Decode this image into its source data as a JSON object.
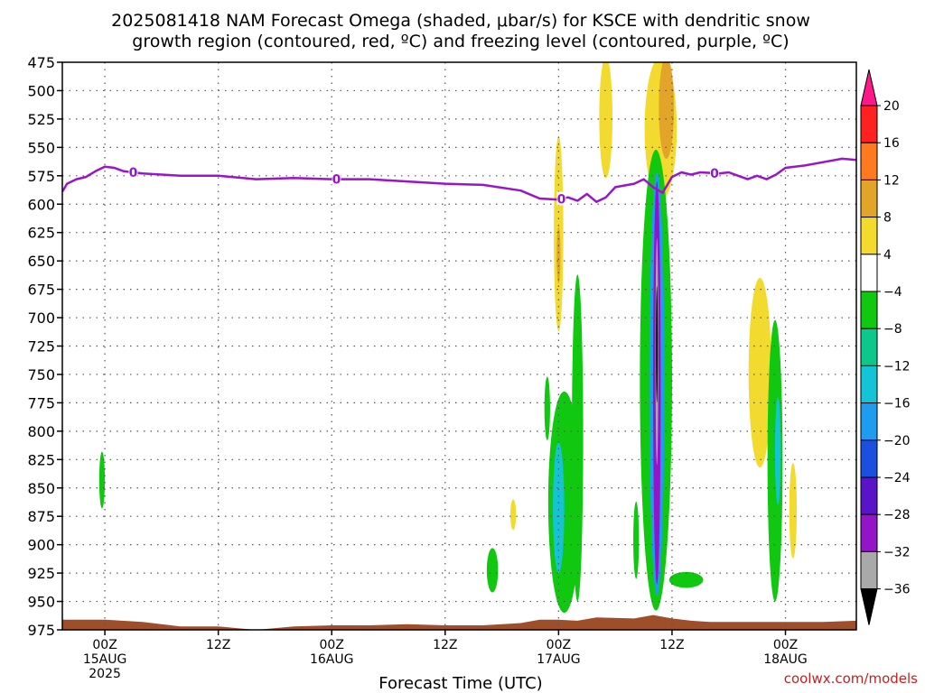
{
  "chart_data": {
    "type": "heatmap",
    "title_lines": [
      "2025081418 NAM Forecast Omega (shaded, μbar/s) for KSCE with dendritic snow",
      "growth region (contoured, red, ºC) and freezing level (contoured, purple, ºC)"
    ],
    "xlabel": "Forecast Time (UTC)",
    "watermark": "coolwx.com/models",
    "y_axis": {
      "unit": "hPa",
      "reversed": true,
      "range": [
        475,
        975
      ],
      "ticks": [
        475,
        500,
        525,
        550,
        575,
        600,
        625,
        650,
        675,
        700,
        725,
        750,
        775,
        800,
        825,
        850,
        875,
        900,
        925,
        950,
        975
      ]
    },
    "x_axis": {
      "unit": "hours from 00Z 15AUG 2025",
      "range": [
        -4.5,
        79.5
      ],
      "ticks": [
        {
          "hour": 0,
          "label": "00Z",
          "sub": "15AUG",
          "sub2": "2025"
        },
        {
          "hour": 12,
          "label": "12Z",
          "sub": "",
          "sub2": ""
        },
        {
          "hour": 24,
          "label": "00Z",
          "sub": "16AUG",
          "sub2": ""
        },
        {
          "hour": 36,
          "label": "12Z",
          "sub": "",
          "sub2": ""
        },
        {
          "hour": 48,
          "label": "00Z",
          "sub": "17AUG",
          "sub2": ""
        },
        {
          "hour": 60,
          "label": "12Z",
          "sub": "",
          "sub2": ""
        },
        {
          "hour": 72,
          "label": "00Z",
          "sub": "18AUG",
          "sub2": ""
        }
      ]
    },
    "grid": true,
    "colorbar": {
      "labels": [
        "20",
        "16",
        "12",
        "8",
        "4",
        "−4",
        "−8",
        "−12",
        "−16",
        "−20",
        "−24",
        "−28",
        "−32",
        "−36"
      ],
      "colors": [
        "#ff2020",
        "#ff7a1e",
        "#e2a52a",
        "#f2da2e",
        "#ffffff",
        "#10c810",
        "#0dc88a",
        "#14c3d6",
        "#1e9cf0",
        "#1a4fe0",
        "#5a14c8",
        "#9414c8",
        "#a9a9a9"
      ],
      "top_arrow_color": "#ff1888",
      "bottom_arrow_color": "#000000"
    },
    "freezing_level": {
      "color": "#9a14c8",
      "contour_label": "0",
      "label_hours": [
        3,
        24.5,
        48.3,
        64.5
      ],
      "points": [
        [
          -4.5,
          589
        ],
        [
          -4,
          582
        ],
        [
          -3,
          578
        ],
        [
          -2,
          576
        ],
        [
          -1,
          571
        ],
        [
          0,
          567
        ],
        [
          1,
          568
        ],
        [
          2,
          571
        ],
        [
          4,
          573
        ],
        [
          8,
          575
        ],
        [
          12,
          575
        ],
        [
          16,
          578
        ],
        [
          20,
          577
        ],
        [
          24,
          578
        ],
        [
          28,
          578
        ],
        [
          32,
          580
        ],
        [
          36,
          582
        ],
        [
          40,
          583
        ],
        [
          44,
          588
        ],
        [
          46,
          595
        ],
        [
          48,
          596
        ],
        [
          49,
          594
        ],
        [
          50,
          597
        ],
        [
          51,
          591
        ],
        [
          52,
          598
        ],
        [
          53,
          594
        ],
        [
          54,
          585
        ],
        [
          56,
          582
        ],
        [
          57,
          578
        ],
        [
          58,
          585
        ],
        [
          59,
          590
        ],
        [
          60,
          576
        ],
        [
          61,
          572
        ],
        [
          62,
          574
        ],
        [
          63,
          572
        ],
        [
          65,
          573
        ],
        [
          66,
          572
        ],
        [
          67,
          575
        ],
        [
          68,
          578
        ],
        [
          69,
          575
        ],
        [
          70,
          578
        ],
        [
          71,
          574
        ],
        [
          72,
          568
        ],
        [
          74,
          566
        ],
        [
          76,
          563
        ],
        [
          78,
          560
        ],
        [
          79.5,
          561
        ]
      ]
    },
    "dendritic_growth_region": {
      "color": "#ff0000",
      "contours": []
    },
    "omega_regions": [
      {
        "hour": -0.3,
        "p_top": 818,
        "p_bot": 868,
        "half_width": 0.3,
        "value": -5
      },
      {
        "hour": 13.5,
        "p_top": 968,
        "p_bot": 982,
        "half_width": 8,
        "value": -1
      },
      {
        "hour": 48,
        "p_top": 540,
        "p_bot": 712,
        "half_width": 0.5,
        "value": 5
      },
      {
        "hour": 48,
        "p_top": 620,
        "p_bot": 670,
        "half_width": 0.2,
        "value": 9
      },
      {
        "hour": 50,
        "p_top": 662,
        "p_bot": 950,
        "half_width": 0.6,
        "value": -5
      },
      {
        "hour": 48.6,
        "p_top": 765,
        "p_bot": 960,
        "half_width": 1.7,
        "value": -6
      },
      {
        "hour": 48,
        "p_top": 810,
        "p_bot": 925,
        "half_width": 0.6,
        "value": -13
      },
      {
        "hour": 46.8,
        "p_top": 752,
        "p_bot": 808,
        "half_width": 0.3,
        "value": -5
      },
      {
        "hour": 43.2,
        "p_top": 860,
        "p_bot": 887,
        "half_width": 0.3,
        "value": 5
      },
      {
        "hour": 41,
        "p_top": 903,
        "p_bot": 942,
        "half_width": 0.6,
        "value": -5
      },
      {
        "hour": 56.2,
        "p_top": 862,
        "p_bot": 930,
        "half_width": 0.3,
        "value": -5
      },
      {
        "hour": 57.2,
        "p_top": 785,
        "p_bot": 870,
        "half_width": 0.2,
        "value": 5
      },
      {
        "hour": 53,
        "p_top": 470,
        "p_bot": 577,
        "half_width": 0.7,
        "value": 5
      },
      {
        "hour": 58.8,
        "p_top": 470,
        "p_bot": 597,
        "half_width": 1.7,
        "value": 5
      },
      {
        "hour": 59.4,
        "p_top": 470,
        "p_bot": 560,
        "half_width": 0.8,
        "value": 11
      },
      {
        "hour": 58.3,
        "p_top": 552,
        "p_bot": 958,
        "half_width": 1.7,
        "value": -6
      },
      {
        "hour": 58.4,
        "p_top": 572,
        "p_bot": 945,
        "half_width": 0.8,
        "value": -17
      },
      {
        "hour": 58.4,
        "p_top": 580,
        "p_bot": 935,
        "half_width": 0.4,
        "value": -29
      },
      {
        "hour": 58.4,
        "p_top": 630,
        "p_bot": 830,
        "half_width": 0.15,
        "value": -33
      },
      {
        "hour": 58.4,
        "p_top": 672,
        "p_bot": 775,
        "half_width": 0.06,
        "value": -40
      },
      {
        "hour": 61.5,
        "p_top": 924,
        "p_bot": 938,
        "half_width": 1.8,
        "value": -5
      },
      {
        "hour": 69.3,
        "p_top": 665,
        "p_bot": 832,
        "half_width": 1.2,
        "value": 5
      },
      {
        "hour": 70.9,
        "p_top": 702,
        "p_bot": 950,
        "half_width": 0.8,
        "value": -6
      },
      {
        "hour": 71.2,
        "p_top": 770,
        "p_bot": 865,
        "half_width": 0.3,
        "value": -15
      },
      {
        "hour": 72.8,
        "p_top": 828,
        "p_bot": 912,
        "half_width": 0.4,
        "value": 5
      }
    ],
    "ground_fill_color": "#9e4f2a",
    "ground": [
      [
        -4.5,
        966
      ],
      [
        0,
        966
      ],
      [
        4,
        968
      ],
      [
        8,
        972
      ],
      [
        12,
        972
      ],
      [
        16,
        975
      ],
      [
        20,
        972
      ],
      [
        24,
        971
      ],
      [
        28,
        971
      ],
      [
        32,
        970
      ],
      [
        36,
        971
      ],
      [
        40,
        971
      ],
      [
        44,
        969
      ],
      [
        46,
        966
      ],
      [
        48,
        966
      ],
      [
        50,
        967
      ],
      [
        52,
        964
      ],
      [
        56,
        965
      ],
      [
        58,
        962
      ],
      [
        60,
        965
      ],
      [
        62,
        967
      ],
      [
        64,
        968
      ],
      [
        68,
        968
      ],
      [
        72,
        968
      ],
      [
        76,
        968
      ],
      [
        79.5,
        967
      ]
    ]
  }
}
